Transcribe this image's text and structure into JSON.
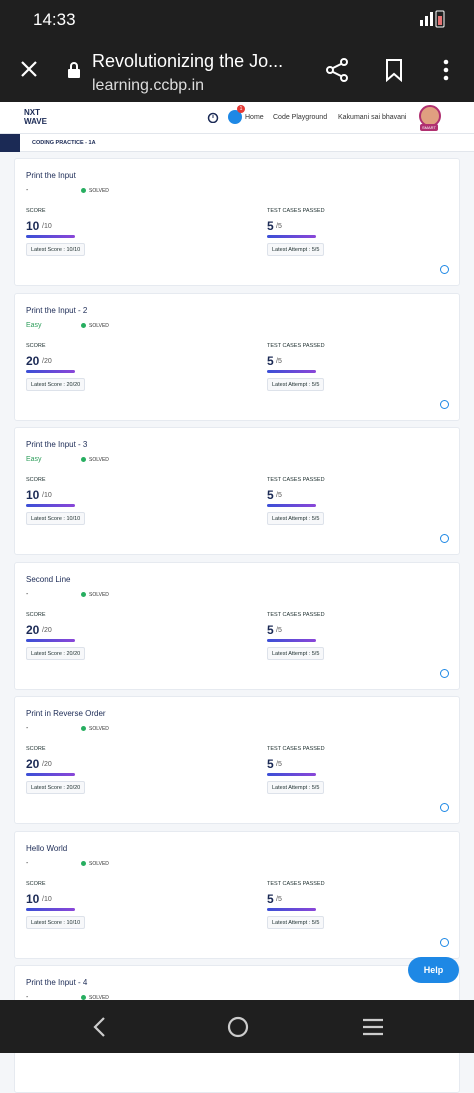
{
  "status_bar": {
    "time": "14:33"
  },
  "browser": {
    "title": "Revolutionizing the Jo...",
    "url": "learning.ccbp.in"
  },
  "site_header": {
    "logo_line1": "NXT",
    "logo_line2": "WAVE",
    "notification_count": "1",
    "nav": [
      "Home",
      "Code Playground",
      "Kakumani sai bhavani"
    ],
    "avatar_badge": "SMART"
  },
  "breadcrumb": "CODING PRACTICE - 1A",
  "labels": {
    "score": "SCORE",
    "test_cases": "TEST CASES PASSED",
    "status": "SOLVED"
  },
  "cards": [
    {
      "title": "Print the Input",
      "difficulty": "-",
      "score": "10",
      "score_max": "/10",
      "tests": "5",
      "tests_max": "/5",
      "latest_score": "Latest Score : 10/10",
      "latest_attempt": "Latest Attempt : 5/5"
    },
    {
      "title": "Print the Input - 2",
      "difficulty": "Easy",
      "score": "20",
      "score_max": "/20",
      "tests": "5",
      "tests_max": "/5",
      "latest_score": "Latest Score : 20/20",
      "latest_attempt": "Latest Attempt : 5/5"
    },
    {
      "title": "Print the Input - 3",
      "difficulty": "Easy",
      "score": "10",
      "score_max": "/10",
      "tests": "5",
      "tests_max": "/5",
      "latest_score": "Latest Score : 10/10",
      "latest_attempt": "Latest Attempt : 5/5"
    },
    {
      "title": "Second Line",
      "difficulty": "-",
      "score": "20",
      "score_max": "/20",
      "tests": "5",
      "tests_max": "/5",
      "latest_score": "Latest Score : 20/20",
      "latest_attempt": "Latest Attempt : 5/5"
    },
    {
      "title": "Print in Reverse Order",
      "difficulty": "-",
      "score": "20",
      "score_max": "/20",
      "tests": "5",
      "tests_max": "/5",
      "latest_score": "Latest Score : 20/20",
      "latest_attempt": "Latest Attempt : 5/5"
    },
    {
      "title": "Hello World",
      "difficulty": "-",
      "score": "10",
      "score_max": "/10",
      "tests": "5",
      "tests_max": "/5",
      "latest_score": "Latest Score : 10/10",
      "latest_attempt": "Latest Attempt : 5/5"
    },
    {
      "title": "Print the Input - 4",
      "difficulty": "-"
    }
  ],
  "help_button": "Help"
}
